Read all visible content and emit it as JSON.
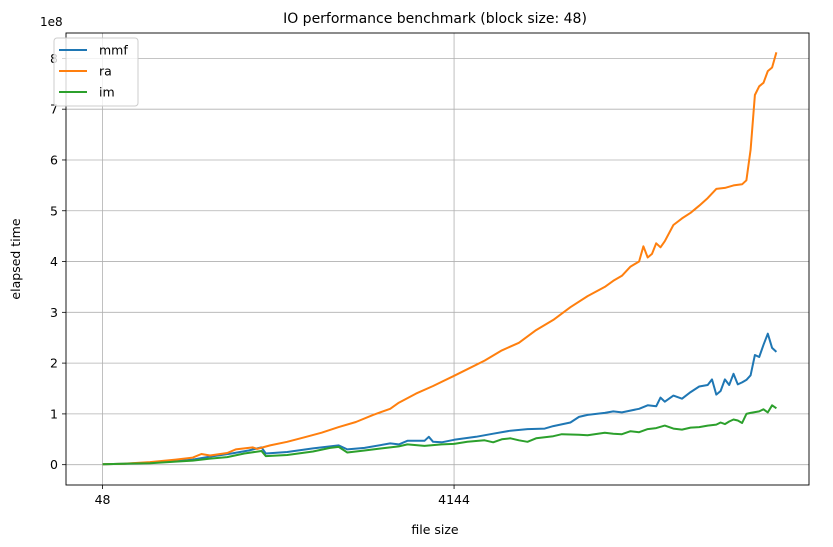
{
  "chart_data": {
    "type": "line",
    "title": "IO performance benchmark (block size: 48)",
    "xlabel": "file size",
    "ylabel": "elapsed time",
    "y_scale_label": "1e8",
    "xlim": [
      -378,
      8280
    ],
    "ylim": [
      -0.4,
      8.5
    ],
    "x_ticks": [
      {
        "value": 48,
        "label": "48"
      },
      {
        "value": 4144,
        "label": "4144"
      }
    ],
    "y_ticks": [
      {
        "value": 0,
        "label": "0"
      },
      {
        "value": 1,
        "label": "1"
      },
      {
        "value": 2,
        "label": "2"
      },
      {
        "value": 3,
        "label": "3"
      },
      {
        "value": 4,
        "label": "4"
      },
      {
        "value": 5,
        "label": "5"
      },
      {
        "value": 6,
        "label": "6"
      },
      {
        "value": 7,
        "label": "7"
      },
      {
        "value": 8,
        "label": "8"
      }
    ],
    "grid": true,
    "legend_position": "top-left",
    "x": [
      48,
      2096,
      4144,
      5200,
      6000,
      7000,
      7500,
      8200
    ],
    "series": [
      {
        "name": "mmf",
        "color": "#1f77b4",
        "points": [
          [
            48,
            0.01
          ],
          [
            300,
            0.02
          ],
          [
            600,
            0.04
          ],
          [
            900,
            0.07
          ],
          [
            1100,
            0.1
          ],
          [
            1300,
            0.16
          ],
          [
            1550,
            0.22
          ],
          [
            1750,
            0.28
          ],
          [
            1900,
            0.34
          ],
          [
            1950,
            0.22
          ],
          [
            2200,
            0.25
          ],
          [
            2500,
            0.32
          ],
          [
            2800,
            0.38
          ],
          [
            2900,
            0.3
          ],
          [
            3100,
            0.33
          ],
          [
            3400,
            0.42
          ],
          [
            3500,
            0.4
          ],
          [
            3600,
            0.47
          ],
          [
            3800,
            0.47
          ],
          [
            3850,
            0.55
          ],
          [
            3900,
            0.45
          ],
          [
            4000,
            0.44
          ],
          [
            4144,
            0.49
          ],
          [
            4400,
            0.55
          ],
          [
            4600,
            0.61
          ],
          [
            4800,
            0.67
          ],
          [
            5000,
            0.7
          ],
          [
            5200,
            0.71
          ],
          [
            5300,
            0.76
          ],
          [
            5500,
            0.83
          ],
          [
            5600,
            0.94
          ],
          [
            5700,
            0.98
          ],
          [
            5900,
            1.02
          ],
          [
            6000,
            1.05
          ],
          [
            6100,
            1.03
          ],
          [
            6300,
            1.1
          ],
          [
            6400,
            1.17
          ],
          [
            6500,
            1.15
          ],
          [
            6550,
            1.32
          ],
          [
            6600,
            1.24
          ],
          [
            6700,
            1.36
          ],
          [
            6800,
            1.3
          ],
          [
            6900,
            1.43
          ],
          [
            7000,
            1.54
          ],
          [
            7100,
            1.57
          ],
          [
            7150,
            1.68
          ],
          [
            7200,
            1.38
          ],
          [
            7250,
            1.45
          ],
          [
            7300,
            1.68
          ],
          [
            7350,
            1.57
          ],
          [
            7400,
            1.79
          ],
          [
            7450,
            1.58
          ],
          [
            7500,
            1.62
          ],
          [
            7550,
            1.67
          ],
          [
            7600,
            1.76
          ],
          [
            7650,
            2.16
          ],
          [
            7700,
            2.12
          ],
          [
            7750,
            2.36
          ],
          [
            7800,
            2.58
          ],
          [
            7850,
            2.3
          ],
          [
            7900,
            2.22
          ]
        ]
      },
      {
        "name": "ra",
        "color": "#ff7f0e",
        "points": [
          [
            48,
            0.01
          ],
          [
            300,
            0.02
          ],
          [
            600,
            0.05
          ],
          [
            900,
            0.1
          ],
          [
            1100,
            0.14
          ],
          [
            1200,
            0.21
          ],
          [
            1300,
            0.18
          ],
          [
            1500,
            0.23
          ],
          [
            1600,
            0.3
          ],
          [
            1800,
            0.34
          ],
          [
            1850,
            0.31
          ],
          [
            2000,
            0.38
          ],
          [
            2200,
            0.45
          ],
          [
            2400,
            0.54
          ],
          [
            2600,
            0.63
          ],
          [
            2800,
            0.74
          ],
          [
            3000,
            0.84
          ],
          [
            3200,
            0.98
          ],
          [
            3400,
            1.1
          ],
          [
            3500,
            1.22
          ],
          [
            3700,
            1.4
          ],
          [
            3900,
            1.55
          ],
          [
            4144,
            1.75
          ],
          [
            4300,
            1.88
          ],
          [
            4500,
            2.05
          ],
          [
            4700,
            2.25
          ],
          [
            4900,
            2.4
          ],
          [
            5100,
            2.65
          ],
          [
            5300,
            2.85
          ],
          [
            5500,
            3.1
          ],
          [
            5700,
            3.32
          ],
          [
            5900,
            3.5
          ],
          [
            6000,
            3.62
          ],
          [
            6100,
            3.72
          ],
          [
            6200,
            3.9
          ],
          [
            6300,
            4.0
          ],
          [
            6350,
            4.3
          ],
          [
            6400,
            4.08
          ],
          [
            6450,
            4.15
          ],
          [
            6500,
            4.36
          ],
          [
            6550,
            4.28
          ],
          [
            6600,
            4.4
          ],
          [
            6700,
            4.72
          ],
          [
            6800,
            4.85
          ],
          [
            6900,
            4.96
          ],
          [
            7000,
            5.1
          ],
          [
            7100,
            5.25
          ],
          [
            7200,
            5.43
          ],
          [
            7300,
            5.45
          ],
          [
            7400,
            5.5
          ],
          [
            7500,
            5.52
          ],
          [
            7550,
            5.6
          ],
          [
            7600,
            6.2
          ],
          [
            7650,
            7.28
          ],
          [
            7700,
            7.45
          ],
          [
            7750,
            7.52
          ],
          [
            7800,
            7.75
          ],
          [
            7850,
            7.82
          ],
          [
            7900,
            8.12
          ]
        ]
      },
      {
        "name": "im",
        "color": "#2ca02c",
        "points": [
          [
            48,
            0.01
          ],
          [
            300,
            0.02
          ],
          [
            600,
            0.03
          ],
          [
            900,
            0.06
          ],
          [
            1100,
            0.08
          ],
          [
            1300,
            0.12
          ],
          [
            1500,
            0.15
          ],
          [
            1700,
            0.22
          ],
          [
            1900,
            0.27
          ],
          [
            1950,
            0.17
          ],
          [
            2200,
            0.19
          ],
          [
            2500,
            0.26
          ],
          [
            2700,
            0.33
          ],
          [
            2800,
            0.35
          ],
          [
            2900,
            0.24
          ],
          [
            3100,
            0.28
          ],
          [
            3300,
            0.32
          ],
          [
            3500,
            0.36
          ],
          [
            3600,
            0.4
          ],
          [
            3800,
            0.37
          ],
          [
            4000,
            0.4
          ],
          [
            4144,
            0.41
          ],
          [
            4300,
            0.45
          ],
          [
            4500,
            0.48
          ],
          [
            4600,
            0.44
          ],
          [
            4700,
            0.5
          ],
          [
            4800,
            0.52
          ],
          [
            4900,
            0.48
          ],
          [
            5000,
            0.45
          ],
          [
            5100,
            0.52
          ],
          [
            5300,
            0.56
          ],
          [
            5400,
            0.6
          ],
          [
            5600,
            0.59
          ],
          [
            5700,
            0.58
          ],
          [
            5900,
            0.63
          ],
          [
            6000,
            0.61
          ],
          [
            6100,
            0.6
          ],
          [
            6200,
            0.66
          ],
          [
            6300,
            0.64
          ],
          [
            6400,
            0.7
          ],
          [
            6500,
            0.72
          ],
          [
            6600,
            0.77
          ],
          [
            6700,
            0.71
          ],
          [
            6800,
            0.69
          ],
          [
            6900,
            0.73
          ],
          [
            7000,
            0.74
          ],
          [
            7100,
            0.77
          ],
          [
            7200,
            0.79
          ],
          [
            7250,
            0.83
          ],
          [
            7300,
            0.8
          ],
          [
            7350,
            0.85
          ],
          [
            7400,
            0.89
          ],
          [
            7450,
            0.87
          ],
          [
            7500,
            0.82
          ],
          [
            7550,
            1.0
          ],
          [
            7600,
            1.02
          ],
          [
            7700,
            1.05
          ],
          [
            7750,
            1.09
          ],
          [
            7800,
            1.03
          ],
          [
            7850,
            1.17
          ],
          [
            7900,
            1.11
          ]
        ]
      }
    ]
  }
}
